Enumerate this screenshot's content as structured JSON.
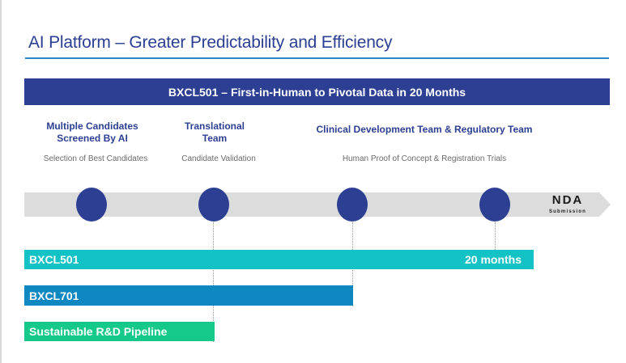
{
  "title": "AI Platform – Greater Predictability and Efficiency",
  "banner": "BXCL501 – First-in-Human to Pivotal Data in 20 Months",
  "phases": [
    {
      "title_line1": "Multiple Candidates",
      "title_line2": "Screened By AI",
      "subtitle": "Selection of Best Candidates"
    },
    {
      "title_line1": "Translational",
      "title_line2": "Team",
      "subtitle": "Candidate Validation"
    },
    {
      "title_line1": "Clinical Development Team & Regulatory Team",
      "title_line2": "",
      "subtitle": "Human Proof of Concept & Registration Trials"
    }
  ],
  "endpoint": {
    "label": "NDA",
    "sublabel": "Submission"
  },
  "bars": [
    {
      "label": "BXCL501",
      "extra": "20 months"
    },
    {
      "label": "BXCL701"
    },
    {
      "label": "Sustainable R&D Pipeline"
    }
  ],
  "colors": {
    "navy": "#2c3f92",
    "rule": "#2f86c4",
    "arrow": "#dcdcdc",
    "bar_teal": "#12c2c4",
    "bar_blue": "#0f88c2",
    "bar_green": "#14c98a"
  }
}
